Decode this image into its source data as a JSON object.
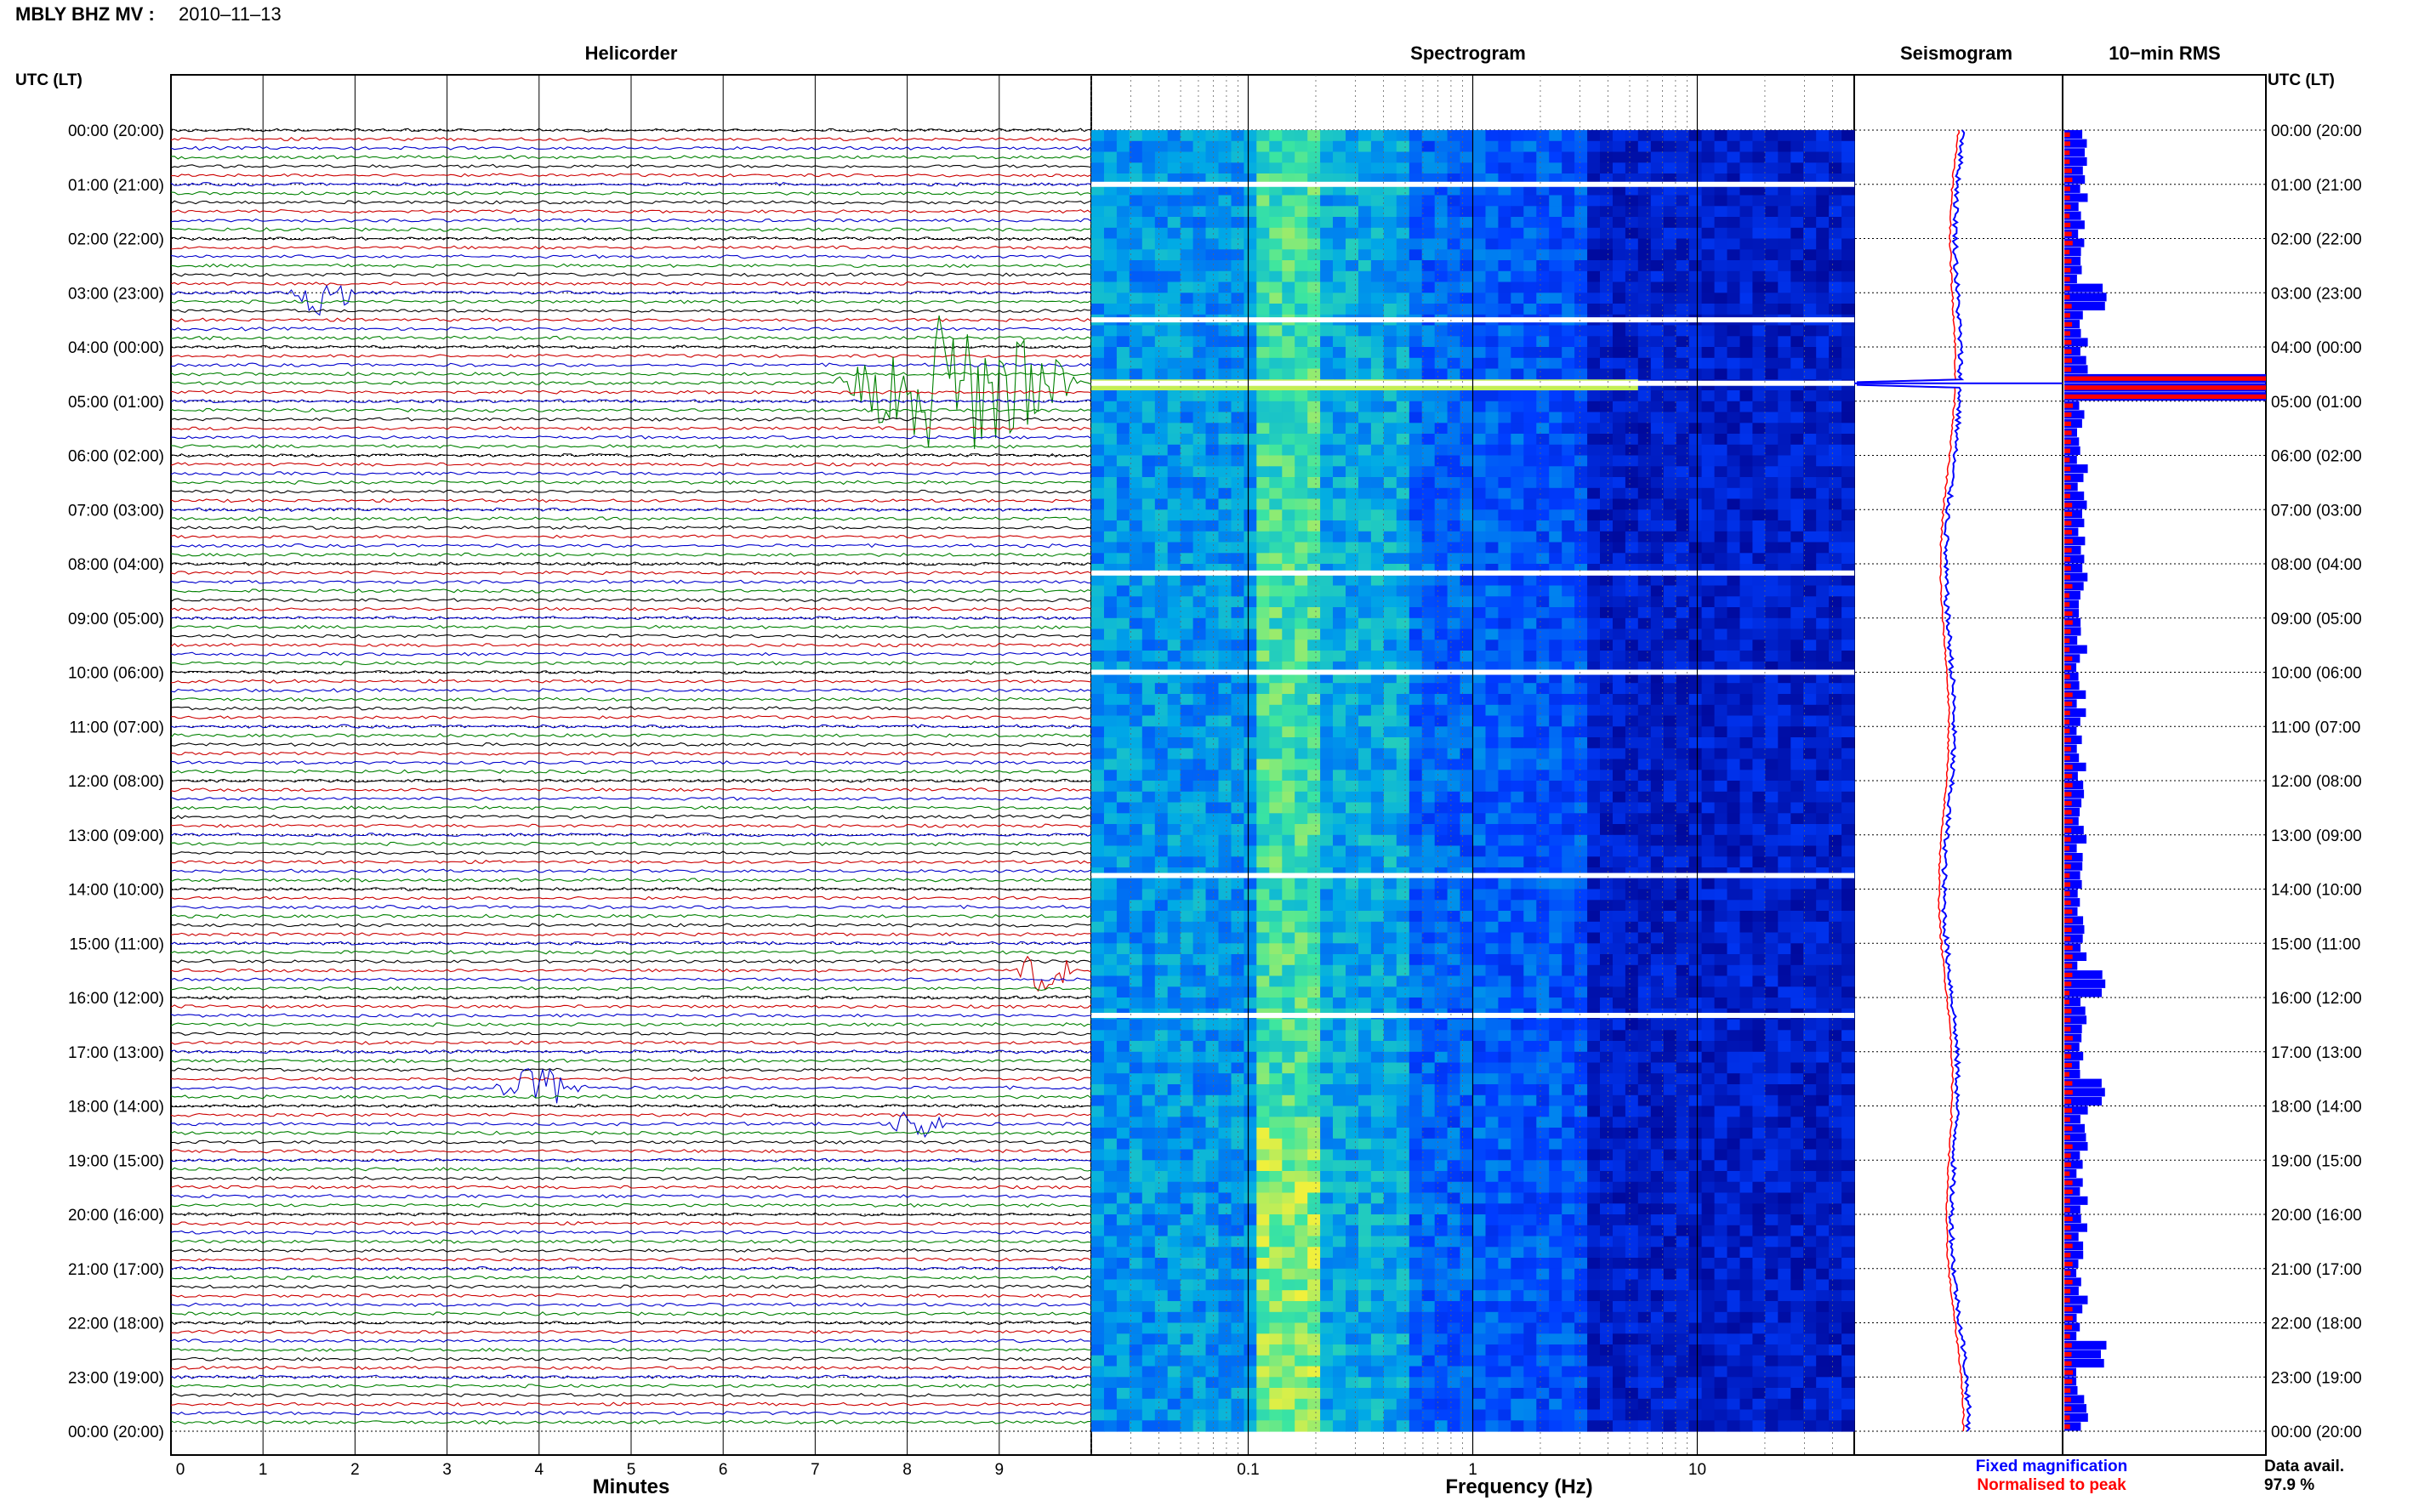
{
  "header": {
    "station": "MBLY BHZ MV :",
    "date": "2010–11–13",
    "utc_label_left": "UTC (LT)",
    "utc_label_right": "UTC (LT)"
  },
  "panels": {
    "helicorder_title": "Helicorder",
    "spectrogram_title": "Spectrogram",
    "seismogram_title": "Seismogram",
    "rms_title": "10−min RMS"
  },
  "axes": {
    "minutes_label": "Minutes",
    "minute_ticks": [
      "0",
      "1",
      "2",
      "3",
      "4",
      "5",
      "6",
      "7",
      "8",
      "9"
    ],
    "frequency_label": "Frequency (Hz)",
    "frequency_ticks": [
      "0.1",
      "1",
      "10"
    ]
  },
  "legend": {
    "fixed": "Fixed magnification",
    "normalised": "Normalised to peak",
    "fixed_color": "#0000ff",
    "normalised_color": "#ff0000"
  },
  "availability": {
    "label": "Data avail.",
    "value": "97.9 %"
  },
  "colors": {
    "trace_cycle": [
      "#000000",
      "#cc0000",
      "#0000cc",
      "#008000"
    ],
    "spectrogram_low": "#00008b",
    "spectrogram_high": "#ffff00"
  },
  "chart_data": {
    "type": "heatmap",
    "title": "MBLY BHZ MV : 2010–11–13",
    "hour_labels": [
      "00:00 (20:00)",
      "01:00 (21:00)",
      "02:00 (22:00)",
      "03:00 (23:00)",
      "04:00 (00:00)",
      "05:00 (01:00)",
      "06:00 (02:00)",
      "07:00 (03:00)",
      "08:00 (04:00)",
      "09:00 (05:00)",
      "10:00 (06:00)",
      "11:00 (07:00)",
      "12:00 (08:00)",
      "13:00 (09:00)",
      "14:00 (10:00)",
      "15:00 (11:00)",
      "16:00 (12:00)",
      "17:00 (13:00)",
      "18:00 (14:00)",
      "19:00 (15:00)",
      "20:00 (16:00)",
      "21:00 (17:00)",
      "22:00 (18:00)",
      "23:00 (19:00)",
      "00:00 (20:00)"
    ],
    "helicorder": {
      "xlabel": "Minutes",
      "xlim": [
        0,
        10
      ],
      "lines_per_hour": 6,
      "events": [
        {
          "hour": 4.667,
          "start_min": 7.2,
          "end_min": 9.9,
          "amplitude": 1.0
        },
        {
          "hour": 3.0,
          "start_min": 1.3,
          "end_min": 2.0,
          "amplitude": 0.3
        },
        {
          "hour": 15.5,
          "start_min": 9.2,
          "end_min": 9.8,
          "amplitude": 0.3
        },
        {
          "hour": 17.67,
          "start_min": 3.5,
          "end_min": 4.5,
          "amplitude": 0.25
        },
        {
          "hour": 18.33,
          "start_min": 7.8,
          "end_min": 8.4,
          "amplitude": 0.2
        }
      ]
    },
    "spectrogram": {
      "xlabel": "Frequency (Hz)",
      "xscale": "log",
      "xlim": [
        0.02,
        50
      ],
      "gaps_hours": [
        1.0,
        3.5,
        4.67,
        8.17,
        10.0,
        13.75,
        16.33
      ],
      "bright_band_hour": 4.67
    },
    "seismogram": {
      "series": [
        {
          "name": "Fixed magnification",
          "color": "#0000ff"
        },
        {
          "name": "Normalised to peak",
          "color": "#ff0000"
        }
      ],
      "peak_hour": 4.67
    },
    "rms": {
      "title": "10−min RMS",
      "peak_hour": 4.67,
      "secondary_peaks_hours": [
        3.0,
        15.67,
        17.67,
        22.5
      ]
    },
    "data_availability_percent": 97.9
  }
}
